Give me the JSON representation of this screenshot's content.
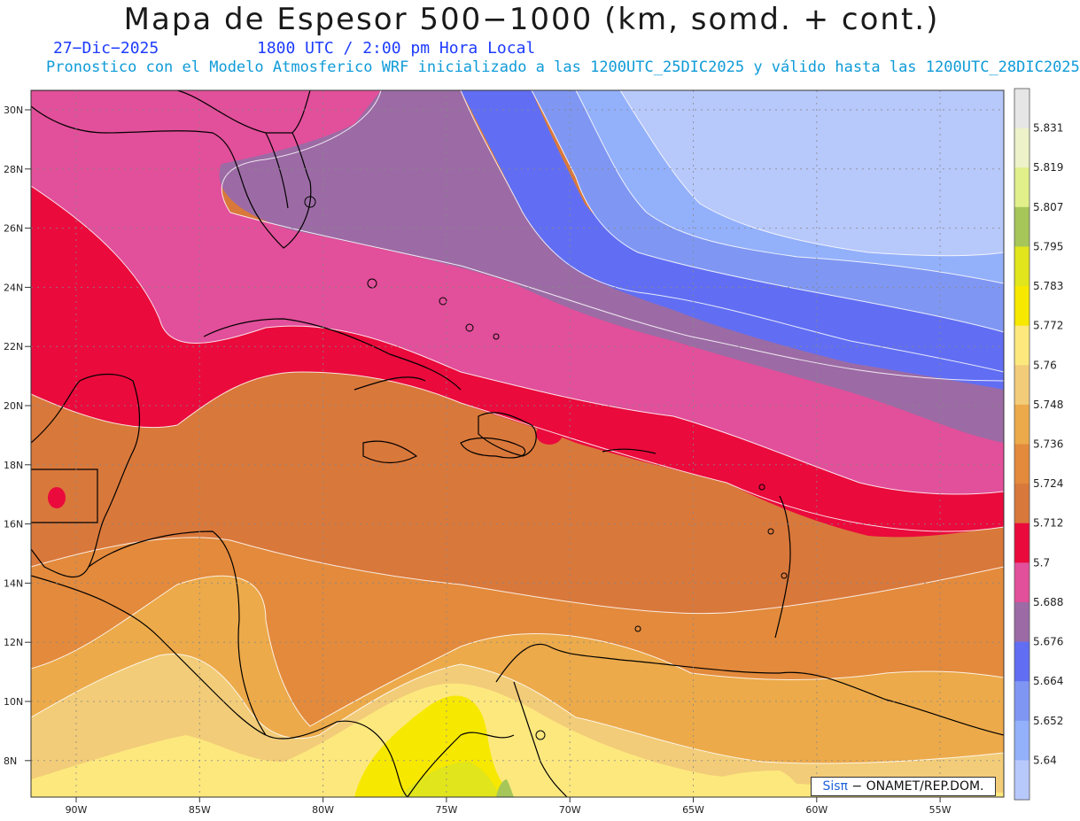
{
  "header": {
    "title": "Mapa de Espesor 500−1000 (km, somd. + cont.)",
    "date": "27−Dic−2025",
    "time": "1800 UTC / 2:00 pm Hora Local",
    "model_info": "Pronostico con el Modelo Atmosferico WRF inicializado a las 1200UTC_25DIC2025 y válido hasta las  1200UTC_28DIC2025"
  },
  "map": {
    "lat_labels": [
      "30N",
      "28N",
      "26N",
      "24N",
      "22N",
      "20N",
      "18N",
      "16N",
      "14N",
      "12N",
      "10N",
      "8N"
    ],
    "lon_labels": [
      "90W",
      "85W",
      "80W",
      "75W",
      "70W",
      "65W",
      "60W",
      "55W"
    ],
    "grid": "dotted"
  },
  "colorbar": {
    "labels": [
      "5.831",
      "5.819",
      "5.807",
      "5.795",
      "5.783",
      "5.772",
      "5.76",
      "5.748",
      "5.736",
      "5.724",
      "5.712",
      "5.7",
      "5.688",
      "5.676",
      "5.664",
      "5.652",
      "5.64"
    ],
    "colors": [
      "#e6e6e6",
      "#eef2c8",
      "#e1f08a",
      "#a6c659",
      "#e1e51c",
      "#f7e800",
      "#fde87e",
      "#f2cc78",
      "#ecaa4a",
      "#e38a3c",
      "#d9783b",
      "#ea0a3c",
      "#e24f9a",
      "#9c6ba5",
      "#616ef3",
      "#7f97f3",
      "#93b0fb",
      "#b7c8fb"
    ]
  },
  "credit": {
    "sis": "Sisπ",
    "org": " − ONAMET/REP.DOM."
  }
}
